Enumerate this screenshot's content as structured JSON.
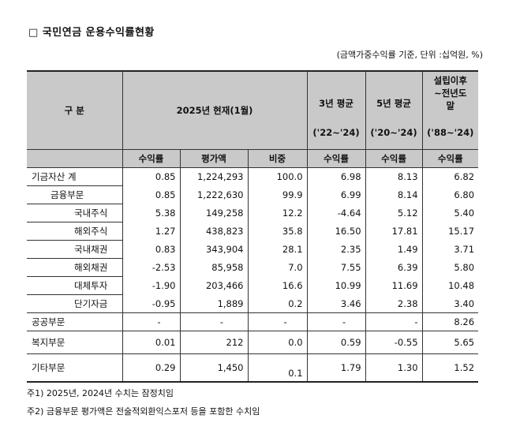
{
  "title": "□ 국민연금 운용수익률현황",
  "unit_note": "(금액가중수익률 기준, 단위 :십억원, %)",
  "header": {
    "category": "구 분",
    "current": "2025년 현재(1월)",
    "avg3_top": "3년 평균",
    "avg3_period": "('22~'24)",
    "avg5_top": "5년 평균",
    "avg5_period": "('20~'24)",
    "since": "설립이후\n~전년도\n말",
    "since_line1": "설립이후",
    "since_line2": "~전년도",
    "since_line3": "말",
    "since_period": "('88~'24)",
    "sub_return": "수익률",
    "sub_value": "평가액",
    "sub_weight": "비중"
  },
  "rows": [
    {
      "label": "기금자산 계",
      "ret": "0.85",
      "value": "1,224,293",
      "weight": "100.0",
      "avg3": "6.98",
      "avg5": "8.13",
      "since": "6.82"
    },
    {
      "label": "금융부문",
      "ret": "0.85",
      "value": "1,222,630",
      "weight": "99.9",
      "avg3": "6.99",
      "avg5": "8.14",
      "since": "6.80"
    },
    {
      "label": "국내주식",
      "ret": "5.38",
      "value": "149,258",
      "weight": "12.2",
      "avg3": "-4.64",
      "avg5": "5.12",
      "since": "5.40"
    },
    {
      "label": "해외주식",
      "ret": "1.27",
      "value": "438,823",
      "weight": "35.8",
      "avg3": "16.50",
      "avg5": "17.81",
      "since": "15.17"
    },
    {
      "label": "국내채권",
      "ret": "0.83",
      "value": "343,904",
      "weight": "28.1",
      "avg3": "2.35",
      "avg5": "1.49",
      "since": "3.71"
    },
    {
      "label": "해외채권",
      "ret": "-2.53",
      "value": "85,958",
      "weight": "7.0",
      "avg3": "7.55",
      "avg5": "6.39",
      "since": "5.80"
    },
    {
      "label": "대체투자",
      "ret": "-1.90",
      "value": "203,466",
      "weight": "16.6",
      "avg3": "10.99",
      "avg5": "11.69",
      "since": "10.48"
    },
    {
      "label": "단기자금",
      "ret": "-0.95",
      "value": "1,889",
      "weight": "0.2",
      "avg3": "3.46",
      "avg5": "2.38",
      "since": "3.40"
    },
    {
      "label": "공공부문",
      "ret": "-",
      "value": "-",
      "weight": "-",
      "avg3": "-",
      "avg5": "-",
      "since": "8.26"
    },
    {
      "label": "복지부문",
      "ret": "0.01",
      "value": "212",
      "weight": "0.0",
      "avg3": "0.59",
      "avg5": "-0.55",
      "since": "5.65"
    },
    {
      "label": "기타부문",
      "ret": "0.29",
      "value": "1,450",
      "weight": "0.1",
      "avg3": "1.79",
      "avg5": "1.30",
      "since": "1.52"
    }
  ],
  "notes": [
    "주1) 2025년, 2024년 수치는 잠정치임",
    "주2) 금융부문 평가액은 전술적외환익스포저 등을 포함한 수치임"
  ]
}
